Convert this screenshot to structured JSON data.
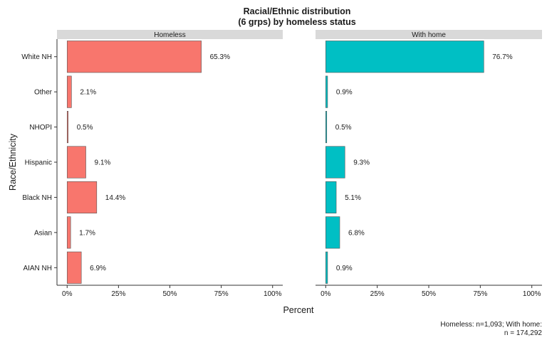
{
  "chart_data": {
    "type": "bar",
    "orientation": "horizontal",
    "title": "Racial/Ethnic distribution",
    "subtitle": "(6 grps) by homeless status",
    "xlabel": "Percent",
    "ylabel": "Race/Ethnicity",
    "xlim": [
      0,
      100
    ],
    "x_ticks": [
      "0%",
      "25%",
      "50%",
      "75%",
      "100%"
    ],
    "categories": [
      "AIAN NH",
      "Asian",
      "Black NH",
      "Hispanic",
      "NHOPI",
      "Other",
      "White NH"
    ],
    "grid": false,
    "legend": "none",
    "caption_line1": "Homeless: n=1,093; With home:",
    "caption_line2": "n = 174,292",
    "panels": [
      {
        "name": "Homeless",
        "color": "#F8766D",
        "values": [
          6.9,
          1.7,
          14.4,
          9.1,
          0.5,
          2.1,
          65.3
        ],
        "labels": [
          "6.9%",
          "1.7%",
          "14.4%",
          "9.1%",
          "0.5%",
          "2.1%",
          "65.3%"
        ]
      },
      {
        "name": "With home",
        "color": "#00BFC4",
        "values": [
          0.9,
          6.8,
          5.1,
          9.3,
          0.5,
          0.9,
          76.7
        ],
        "labels": [
          "0.9%",
          "6.8%",
          "5.1%",
          "9.3%",
          "0.5%",
          "0.9%",
          "76.7%"
        ]
      }
    ]
  }
}
